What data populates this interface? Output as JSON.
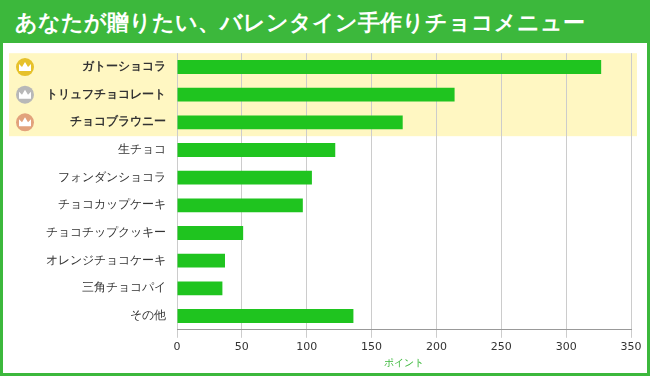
{
  "chart_data": {
    "type": "bar",
    "orientation": "horizontal",
    "title": "あなたが贈りたい、バレンタイン手作りチョコメニュー",
    "xlabel": "ポイント",
    "categories": [
      "ガトーショコラ",
      "トリュフチョコレート",
      "チョコブラウニー",
      "生チョコ",
      "フォンダンショコラ",
      "チョコカップケーキ",
      "チョコチップクッキー",
      "オレンジチョコケーキ",
      "三角チョコパイ",
      "その他"
    ],
    "values": [
      327,
      214,
      174,
      122,
      104,
      97,
      51,
      37,
      35,
      136
    ],
    "color": "#1fc41f",
    "xlim": [
      0,
      350
    ],
    "xticks": [
      0,
      50,
      100,
      150,
      200,
      250,
      300,
      350
    ],
    "grid": true
  }
}
